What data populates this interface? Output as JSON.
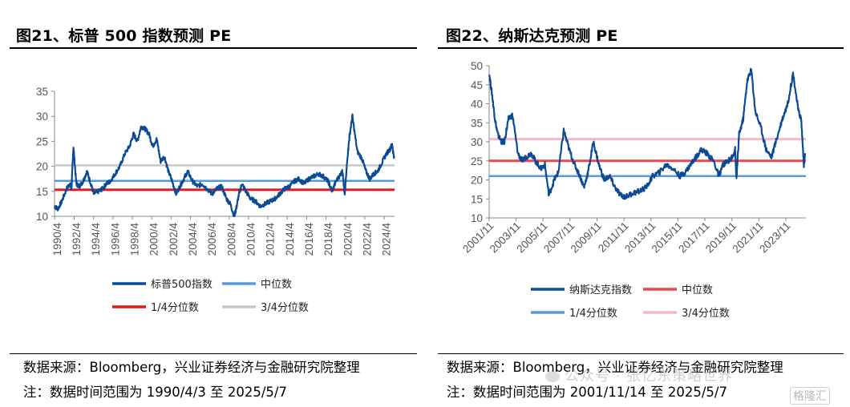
{
  "left": {
    "title": "图21、标普 500 指数预测 PE",
    "source": "数据来源：Bloomberg，兴业证券经济与金融研究院整理",
    "note": "注：数据时间范围为 1990/4/3 至 2025/5/7"
  },
  "right": {
    "title": "图22、纳斯达克预测 PE",
    "source": "数据来源：Bloomberg，兴业证券经济与金融研究院整理",
    "note": "注：数据时间范围为 2001/11/14 至 2025/5/7"
  },
  "watermark": {
    "text": "公众号 · 张忆东策略世界",
    "brand": "格隆汇"
  },
  "chart_data": [
    {
      "type": "line",
      "ylim": [
        10,
        35
      ],
      "yticks": [
        10,
        15,
        20,
        25,
        30,
        35
      ],
      "x_categories": [
        "1990/4",
        "1992/4",
        "1994/4",
        "1996/4",
        "1998/4",
        "2000/4",
        "2002/4",
        "2004/4",
        "2006/4",
        "2008/4",
        "2010/4",
        "2012/4",
        "2014/4",
        "2016/4",
        "2018/4",
        "2020/4",
        "2022/4",
        "2024/4"
      ],
      "x_range": [
        1990.25,
        2025.35
      ],
      "grid": false,
      "legend_position": "bottom",
      "series": [
        {
          "name": "标普500指数",
          "color": "#0b4a94",
          "x": [
            1990.25,
            1990.6,
            1991.0,
            1991.5,
            1991.8,
            1992.0,
            1992.2,
            1992.5,
            1992.8,
            1993.2,
            1993.6,
            1994.0,
            1994.3,
            1994.8,
            1995.2,
            1995.6,
            1996.0,
            1996.5,
            1997.0,
            1997.5,
            1998.0,
            1998.4,
            1998.8,
            1999.2,
            1999.6,
            2000.0,
            2000.4,
            2000.8,
            2001.2,
            2001.6,
            2002.0,
            2002.4,
            2002.8,
            2003.2,
            2003.6,
            2004.0,
            2004.5,
            2005.0,
            2005.5,
            2006.0,
            2006.5,
            2007.0,
            2007.5,
            2008.0,
            2008.4,
            2008.8,
            2009.0,
            2009.3,
            2009.6,
            2010.0,
            2010.5,
            2011.0,
            2011.5,
            2012.0,
            2012.5,
            2013.0,
            2013.5,
            2014.0,
            2014.5,
            2015.0,
            2015.5,
            2016.0,
            2016.5,
            2017.0,
            2017.5,
            2018.0,
            2018.5,
            2018.9,
            2019.3,
            2019.8,
            2020.0,
            2020.2,
            2020.5,
            2020.7,
            2021.0,
            2021.5,
            2022.0,
            2022.4,
            2022.8,
            2023.2,
            2023.6,
            2024.0,
            2024.5,
            2024.9,
            2025.1,
            2025.3
          ],
          "y": [
            12.0,
            11.5,
            13.0,
            15.5,
            16.5,
            15.5,
            24.0,
            16.5,
            16.0,
            17.0,
            19.0,
            16.5,
            14.5,
            15.0,
            15.5,
            16.5,
            17.0,
            18.5,
            20.0,
            22.5,
            24.0,
            26.5,
            25.0,
            28.0,
            27.5,
            26.5,
            24.0,
            25.5,
            21.0,
            22.0,
            19.0,
            17.0,
            14.5,
            16.0,
            17.5,
            19.0,
            17.0,
            16.0,
            16.5,
            15.5,
            14.5,
            15.5,
            16.0,
            13.5,
            12.5,
            10.0,
            11.5,
            14.5,
            16.5,
            15.0,
            13.5,
            13.0,
            12.0,
            12.5,
            13.0,
            13.5,
            14.5,
            15.5,
            16.0,
            17.0,
            17.5,
            16.5,
            17.5,
            18.0,
            18.5,
            18.0,
            17.0,
            15.0,
            17.0,
            18.5,
            19.0,
            14.0,
            22.0,
            26.0,
            30.0,
            23.0,
            21.5,
            19.0,
            17.5,
            18.5,
            19.0,
            20.5,
            22.5,
            23.5,
            24.5,
            21.5
          ]
        },
        {
          "name": "中位数",
          "color": "#5b9bd5",
          "value": 17.1
        },
        {
          "name": "1/4分位数",
          "color": "#e01a1a",
          "value": 15.3
        },
        {
          "name": "3/4分位数",
          "color": "#c8c8c8",
          "value": 20.2
        }
      ]
    },
    {
      "type": "line",
      "ylim": [
        10,
        50
      ],
      "yticks": [
        10,
        15,
        20,
        25,
        30,
        35,
        40,
        45,
        50
      ],
      "x_categories": [
        "2001/11",
        "2003/11",
        "2005/11",
        "2007/11",
        "2009/11",
        "2011/11",
        "2013/11",
        "2015/11",
        "2017/11",
        "2019/11",
        "2021/11",
        "2023/11"
      ],
      "x_range": [
        2001.87,
        2025.35
      ],
      "grid": false,
      "legend_position": "bottom",
      "series": [
        {
          "name": "纳斯达克指数",
          "color": "#0b4a94",
          "x": [
            2001.87,
            2002.1,
            2002.3,
            2002.5,
            2002.8,
            2003.0,
            2003.3,
            2003.6,
            2004.0,
            2004.3,
            2004.6,
            2005.0,
            2005.3,
            2005.7,
            2006.0,
            2006.3,
            2006.7,
            2007.0,
            2007.4,
            2007.8,
            2008.2,
            2008.6,
            2008.9,
            2009.2,
            2009.6,
            2010.0,
            2010.4,
            2010.8,
            2011.2,
            2011.6,
            2012.0,
            2012.5,
            2013.0,
            2013.5,
            2014.0,
            2014.5,
            2015.0,
            2015.5,
            2016.0,
            2016.4,
            2016.8,
            2017.2,
            2017.6,
            2018.0,
            2018.5,
            2018.9,
            2019.2,
            2019.6,
            2019.9,
            2020.1,
            2020.2,
            2020.4,
            2020.7,
            2021.0,
            2021.3,
            2021.6,
            2022.0,
            2022.4,
            2022.8,
            2023.2,
            2023.6,
            2024.0,
            2024.4,
            2024.8,
            2025.0,
            2025.2,
            2025.3
          ],
          "y": [
            48.0,
            42.0,
            36.0,
            32.0,
            30.0,
            30.0,
            36.0,
            37.0,
            27.0,
            25.0,
            26.0,
            27.0,
            25.0,
            23.0,
            24.0,
            16.0,
            20.0,
            22.0,
            33.0,
            28.0,
            24.0,
            21.0,
            18.0,
            22.0,
            30.0,
            24.0,
            20.0,
            21.0,
            18.0,
            16.0,
            15.5,
            16.5,
            17.0,
            18.0,
            21.0,
            22.0,
            24.0,
            23.0,
            21.0,
            22.0,
            24.0,
            26.0,
            28.0,
            27.0,
            25.0,
            21.0,
            24.0,
            25.0,
            26.0,
            28.0,
            20.0,
            32.0,
            36.0,
            46.0,
            49.0,
            38.0,
            34.0,
            28.0,
            26.0,
            31.0,
            36.0,
            40.0,
            48.0,
            38.0,
            36.0,
            24.0,
            27.0
          ]
        },
        {
          "name": "中位数",
          "color": "#e8474c",
          "value": 25.0
        },
        {
          "name": "1/4分位数",
          "color": "#5b9bd5",
          "value": 21.0
        },
        {
          "name": "3/4分位数",
          "color": "#f4b8c6",
          "value": 30.7
        }
      ]
    }
  ]
}
